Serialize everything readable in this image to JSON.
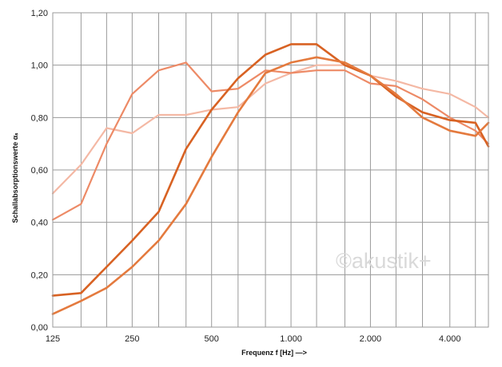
{
  "chart_data": {
    "type": "line",
    "xlabel": "Frequenz f  [Hz]   —>",
    "ylabel": "Schallabsorptionswerte  αₛ",
    "x_scale": "log",
    "xlim": [
      125,
      5600
    ],
    "ylim": [
      0,
      1.2
    ],
    "grid": true,
    "y_ticks": [
      0,
      0.2,
      0.4,
      0.6,
      0.8,
      1.0,
      1.2
    ],
    "y_tick_labels": [
      "0,00",
      "0,20",
      "0,40",
      "0,60",
      "0,80",
      "1,00",
      "1,20"
    ],
    "x_ticks": [
      125,
      250,
      500,
      1000,
      2000,
      4000
    ],
    "x_tick_labels": [
      "125",
      "250",
      "500",
      "1.000",
      "2.000",
      "4.000"
    ],
    "x_grid": [
      125,
      160,
      200,
      250,
      315,
      400,
      500,
      630,
      800,
      1000,
      1250,
      1600,
      2000,
      2500,
      3150,
      4000,
      5000
    ],
    "watermark": "©akustik+",
    "x": [
      125,
      160,
      200,
      250,
      315,
      400,
      500,
      630,
      800,
      1000,
      1250,
      1600,
      2000,
      2500,
      3150,
      4000,
      5000,
      5600
    ],
    "series": [
      {
        "color": "#f4b8a4",
        "width": 2.2,
        "values": [
          0.51,
          0.62,
          0.76,
          0.74,
          0.81,
          0.81,
          0.83,
          0.84,
          0.93,
          0.97,
          1.0,
          1.0,
          0.96,
          0.94,
          0.91,
          0.89,
          0.84,
          0.8
        ]
      },
      {
        "color": "#ed8a66",
        "width": 2.2,
        "values": [
          0.41,
          0.47,
          0.7,
          0.89,
          0.98,
          1.01,
          0.9,
          0.91,
          0.98,
          0.97,
          0.98,
          0.98,
          0.93,
          0.92,
          0.87,
          0.8,
          0.75,
          0.7
        ]
      },
      {
        "color": "#d86223",
        "width": 2.6,
        "values": [
          0.12,
          0.13,
          0.23,
          0.33,
          0.44,
          0.68,
          0.83,
          0.95,
          1.04,
          1.08,
          1.08,
          1.0,
          0.96,
          0.88,
          0.82,
          0.79,
          0.78,
          0.69
        ]
      },
      {
        "color": "#e47a3e",
        "width": 2.6,
        "values": [
          0.05,
          0.1,
          0.15,
          0.23,
          0.33,
          0.47,
          0.65,
          0.82,
          0.97,
          1.01,
          1.03,
          1.01,
          0.96,
          0.89,
          0.8,
          0.75,
          0.73,
          0.78
        ]
      }
    ]
  }
}
